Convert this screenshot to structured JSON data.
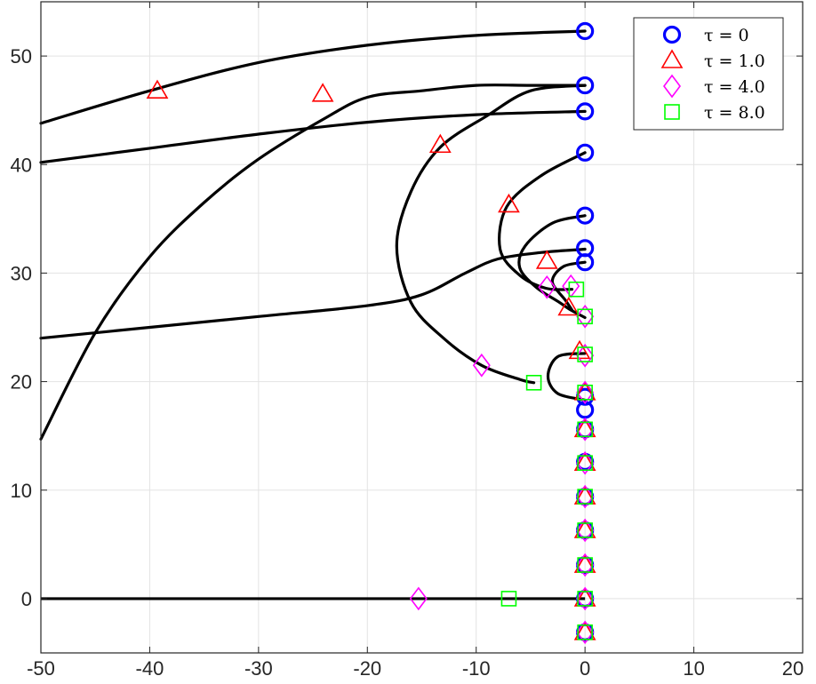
{
  "chart_data": {
    "type": "line",
    "title": "",
    "xlabel": "",
    "ylabel": "",
    "xlim": [
      -50,
      20
    ],
    "ylim": [
      -5,
      55
    ],
    "x_ticks": [
      -50,
      -40,
      -30,
      -20,
      -10,
      0,
      10,
      20
    ],
    "y_ticks": [
      0,
      10,
      20,
      30,
      40,
      50
    ],
    "grid": true,
    "legend_position": "top-right",
    "curve_color": "#000000",
    "curves": [
      [
        [
          -50,
          43.8
        ],
        [
          -40,
          46.8
        ],
        [
          -30,
          49.4
        ],
        [
          -20,
          51.0
        ],
        [
          -10,
          51.9
        ],
        [
          0,
          52.3
        ]
      ],
      [
        [
          -50,
          14.7
        ],
        [
          -45,
          24.5
        ],
        [
          -40,
          31.5
        ],
        [
          -35,
          36.5
        ],
        [
          -30,
          40.5
        ],
        [
          -24,
          44.2
        ],
        [
          -20,
          46.2
        ],
        [
          -15,
          46.8
        ],
        [
          -10,
          47.3
        ],
        [
          -5,
          47.3
        ],
        [
          0,
          47.3
        ]
      ],
      [
        [
          -50,
          40.2
        ],
        [
          -40,
          41.5
        ],
        [
          -30,
          42.8
        ],
        [
          -20,
          43.9
        ],
        [
          -10,
          44.6
        ],
        [
          0,
          44.9
        ]
      ],
      [
        [
          -50,
          24.0
        ],
        [
          -40,
          25.0
        ],
        [
          -30,
          26.0
        ],
        [
          -20,
          27.0
        ],
        [
          -15,
          28.0
        ],
        [
          -11,
          30.0
        ],
        [
          -8,
          31.3
        ],
        [
          -4,
          31.9
        ],
        [
          0,
          32.2
        ]
      ],
      [
        [
          0,
          47.3
        ],
        [
          -5,
          46.8
        ],
        [
          -9,
          44.5
        ],
        [
          -13.3,
          41.6
        ],
        [
          -16,
          37.5
        ],
        [
          -17.3,
          32.5
        ],
        [
          -16,
          27.3
        ],
        [
          -13,
          24.0
        ],
        [
          -9.5,
          21.5
        ],
        [
          -6,
          20.2
        ],
        [
          -4.7,
          19.9
        ]
      ],
      [
        [
          0,
          41.1
        ],
        [
          -4,
          39.0
        ],
        [
          -7.2,
          36.1
        ],
        [
          -7.8,
          32.2
        ],
        [
          -6,
          29.8
        ],
        [
          -3.6,
          28.6
        ],
        [
          -1.2,
          28.5
        ]
      ],
      [
        [
          0,
          35.3
        ],
        [
          -3,
          34.6
        ],
        [
          -5.5,
          32.5
        ],
        [
          -6,
          30.5
        ],
        [
          -4.5,
          28.7
        ],
        [
          -2.5,
          27.4
        ],
        [
          -1.3,
          26.6
        ],
        [
          0,
          25.9
        ]
      ],
      [
        [
          0,
          31.0
        ],
        [
          -2,
          30.6
        ],
        [
          -3,
          29.2
        ],
        [
          -1.8,
          27.5
        ],
        [
          -1.2,
          26.6
        ]
      ],
      [
        [
          0,
          22.6
        ],
        [
          -2.5,
          22.3
        ],
        [
          -3.4,
          20.5
        ],
        [
          -2.5,
          18.9
        ],
        [
          0,
          18.3
        ]
      ]
    ],
    "series": [
      {
        "name": "τ = 0",
        "marker": "circle",
        "color": "#0000ff",
        "points": [
          [
            0,
            52.3
          ],
          [
            0,
            47.3
          ],
          [
            0,
            44.9
          ],
          [
            0,
            41.1
          ],
          [
            0,
            35.3
          ],
          [
            0,
            32.3
          ],
          [
            0,
            31.0
          ],
          [
            0,
            18.6
          ],
          [
            0,
            17.4
          ],
          [
            0,
            15.6
          ],
          [
            0,
            12.6
          ],
          [
            0,
            9.4
          ],
          [
            0,
            6.3
          ],
          [
            0,
            3.1
          ],
          [
            0,
            0
          ],
          [
            0,
            -3.1
          ]
        ]
      },
      {
        "name": "τ = 1.0",
        "marker": "triangle",
        "color": "#ff0000",
        "points": [
          [
            -39.3,
            46.8
          ],
          [
            -24.1,
            46.5
          ],
          [
            -13.3,
            41.8
          ],
          [
            -7.0,
            36.3
          ],
          [
            -3.5,
            31.1
          ],
          [
            -1.5,
            26.8
          ],
          [
            -0.5,
            22.8
          ],
          [
            0,
            19.0
          ],
          [
            0,
            15.6
          ],
          [
            0,
            12.5
          ],
          [
            0,
            9.4
          ],
          [
            0,
            6.3
          ],
          [
            0,
            3.1
          ],
          [
            0,
            0
          ],
          [
            0,
            -3.1
          ]
        ]
      },
      {
        "name": "τ = 4.0",
        "marker": "diamond",
        "color": "#ff00ff",
        "points": [
          [
            -15.3,
            0
          ],
          [
            -9.5,
            21.5
          ],
          [
            -3.5,
            28.7
          ],
          [
            -1.3,
            28.8
          ],
          [
            0,
            26.0
          ],
          [
            0,
            22.4
          ],
          [
            0,
            19.0
          ],
          [
            0,
            15.6
          ],
          [
            0,
            12.5
          ],
          [
            0,
            9.4
          ],
          [
            0,
            6.3
          ],
          [
            0,
            3.1
          ],
          [
            0,
            0
          ],
          [
            0,
            -3.1
          ]
        ]
      },
      {
        "name": "τ = 8.0",
        "marker": "square",
        "color": "#00ff00",
        "points": [
          [
            -7.0,
            0
          ],
          [
            -4.7,
            19.9
          ],
          [
            -0.8,
            28.5
          ],
          [
            0,
            26.0
          ],
          [
            0,
            22.5
          ],
          [
            0,
            19.0
          ],
          [
            0,
            15.6
          ],
          [
            0,
            12.5
          ],
          [
            0,
            9.4
          ],
          [
            0,
            6.3
          ],
          [
            0,
            3.1
          ],
          [
            0,
            0
          ],
          [
            0,
            -3.1
          ]
        ]
      }
    ],
    "horizontal_line": {
      "y": 0,
      "x_from": -50,
      "x_to": 0
    }
  }
}
